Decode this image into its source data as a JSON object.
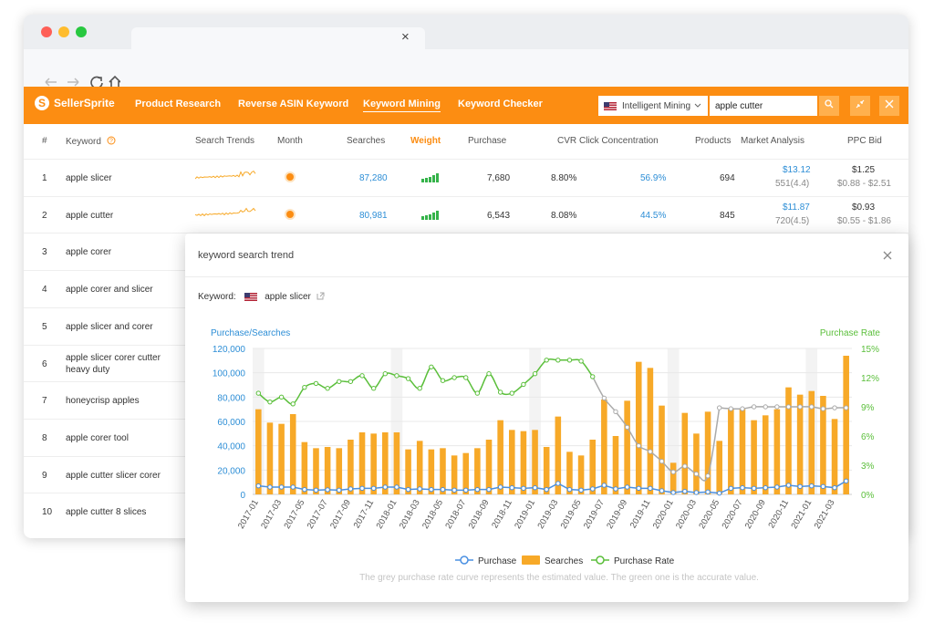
{
  "browser": {
    "tab_close": "×",
    "back_icon": "arrow-left-icon",
    "forward_icon": "arrow-right-icon",
    "reload_icon": "reload-icon",
    "home_icon": "home-icon",
    "search_icon": "search-icon"
  },
  "app": {
    "brand": "SellerSprite",
    "nav": [
      "Product Research",
      "Reverse ASIN Keyword",
      "Keyword Mining",
      "Keyword Checker"
    ],
    "active_nav": "Keyword Mining",
    "mining_mode": "Intelligent Mining",
    "search_value": "apple cutter",
    "accent": "#fc8d12"
  },
  "table": {
    "columns": [
      "#",
      "Keyword",
      "Search Trends",
      "Month",
      "Searches",
      "Weight",
      "Purchase",
      "CVR",
      "Click Concentration",
      "Products",
      "Market Analysis",
      "PPC Bid"
    ],
    "rows": [
      {
        "n": "1",
        "keyword": "apple slicer",
        "searches": "87,280",
        "purchase": "7,680",
        "cvr": "8.80%",
        "click": "56.9%",
        "products": "694",
        "market": "$13.12",
        "market_sub": "551(4.4)",
        "ppc": "$1.25",
        "ppc_range": "$0.88 - $2.51"
      },
      {
        "n": "2",
        "keyword": "apple cutter",
        "searches": "80,981",
        "purchase": "6,543",
        "cvr": "8.08%",
        "click": "44.5%",
        "products": "845",
        "market": "$11.87",
        "market_sub": "720(4.5)",
        "ppc": "$0.93",
        "ppc_range": "$0.55 - $1.86"
      },
      {
        "n": "3",
        "keyword": "apple corer"
      },
      {
        "n": "4",
        "keyword": "apple corer and slicer"
      },
      {
        "n": "5",
        "keyword": "apple slicer and corer"
      },
      {
        "n": "6",
        "keyword": "apple slicer corer cutter heavy duty"
      },
      {
        "n": "7",
        "keyword": "honeycrisp apples"
      },
      {
        "n": "8",
        "keyword": "apple corer tool"
      },
      {
        "n": "9",
        "keyword": "apple cutter slicer corer"
      },
      {
        "n": "10",
        "keyword": "apple cutter 8 slices"
      }
    ]
  },
  "modal": {
    "title": "keyword search trend",
    "keyword_label": "Keyword:",
    "keyword": "apple slicer",
    "left_axis_label": "Purchase/Searches",
    "right_axis_label": "Purchase Rate",
    "legend": [
      "Purchase",
      "Searches",
      "Purchase Rate"
    ],
    "footnote": "The grey purchase rate curve represents the estimated value. The green one is the accurate value."
  },
  "chart_data": {
    "type": "bar",
    "title": "",
    "ylabel": "Purchase/Searches",
    "y2label": "Purchase Rate",
    "ylim": [
      0,
      120000
    ],
    "y2lim": [
      0,
      15
    ],
    "y_ticks": [
      "0",
      "20,000",
      "40,000",
      "60,000",
      "80,000",
      "100,000",
      "120,000"
    ],
    "y2_ticks": [
      "0%",
      "3%",
      "6%",
      "9%",
      "12%",
      "15%"
    ],
    "x_tick_labels": [
      "2017-01",
      "2017-03",
      "2017-05",
      "2017-07",
      "2017-09",
      "2017-11",
      "2018-01",
      "2018-03",
      "2018-05",
      "2018-07",
      "2018-09",
      "2018-11",
      "2019-01",
      "2019-03",
      "2019-05",
      "2019-07",
      "2019-09",
      "2019-11",
      "2020-01",
      "2020-03",
      "2020-05",
      "2020-07",
      "2020-09",
      "2020-11",
      "2021-01",
      "2021-03"
    ],
    "categories": [
      "2017-01",
      "2017-02",
      "2017-03",
      "2017-04",
      "2017-05",
      "2017-06",
      "2017-07",
      "2017-08",
      "2017-09",
      "2017-10",
      "2017-11",
      "2017-12",
      "2018-01",
      "2018-02",
      "2018-03",
      "2018-04",
      "2018-05",
      "2018-06",
      "2018-07",
      "2018-08",
      "2018-09",
      "2018-10",
      "2018-11",
      "2018-12",
      "2019-01",
      "2019-02",
      "2019-03",
      "2019-04",
      "2019-05",
      "2019-06",
      "2019-07",
      "2019-08",
      "2019-09",
      "2019-10",
      "2019-11",
      "2019-12",
      "2020-01",
      "2020-02",
      "2020-03",
      "2020-04",
      "2020-05",
      "2020-06",
      "2020-07",
      "2020-08",
      "2020-09",
      "2020-10",
      "2020-11",
      "2020-12",
      "2021-01",
      "2021-02",
      "2021-03",
      "2021-04"
    ],
    "series": [
      {
        "name": "Searches",
        "type": "bar",
        "color": "#f7a928",
        "values": [
          70000,
          59000,
          58000,
          66000,
          43000,
          38000,
          39000,
          38000,
          45000,
          51000,
          50000,
          51000,
          51000,
          37000,
          44000,
          37000,
          38000,
          32000,
          34000,
          38000,
          45000,
          61000,
          53000,
          52000,
          53000,
          39000,
          64000,
          35000,
          32000,
          45000,
          78000,
          48000,
          77000,
          109000,
          104000,
          73000,
          26000,
          67000,
          50000,
          68000,
          44000,
          70000,
          70000,
          61000,
          65000,
          70000,
          88000,
          82000,
          85000,
          81000,
          62000,
          114000
        ]
      },
      {
        "name": "Purchase",
        "type": "line",
        "color": "#4a90e2",
        "values": [
          7000,
          6000,
          6000,
          6000,
          4000,
          3500,
          3800,
          3500,
          4500,
          5000,
          5000,
          6000,
          6000,
          4000,
          4500,
          4000,
          4000,
          3500,
          3500,
          4000,
          4000,
          6000,
          5500,
          5000,
          5500,
          4000,
          9000,
          4000,
          3500,
          4500,
          7500,
          4500,
          6000,
          5000,
          5000,
          3000,
          1500,
          2500,
          1500,
          2000,
          1000,
          5000,
          5500,
          5000,
          5500,
          6000,
          7500,
          6500,
          7000,
          6500,
          5500,
          11000
        ]
      },
      {
        "name": "Purchase Rate",
        "type": "line",
        "color": "#5bbf3b",
        "axis": "right",
        "values": [
          10.4,
          9.5,
          10.0,
          9.3,
          11.0,
          11.4,
          10.9,
          11.6,
          11.6,
          12.2,
          10.9,
          12.4,
          12.2,
          11.9,
          10.9,
          13.1,
          11.7,
          12.0,
          12.0,
          10.4,
          12.4,
          10.5,
          10.4,
          11.3,
          12.4,
          13.8,
          13.8,
          13.8,
          13.7,
          12.1,
          9.9,
          8.5,
          6.9,
          5.0,
          4.4,
          3.4,
          2.3,
          2.9,
          2.1,
          1.9,
          8.9,
          8.8,
          8.8,
          9.0,
          9.0,
          9.0,
          9.0,
          9.0,
          9.0,
          8.8,
          8.9,
          8.9
        ]
      }
    ],
    "estimated_rate_note": "grey segment = estimated purchase rate",
    "grid": true,
    "legend_position": "bottom"
  }
}
